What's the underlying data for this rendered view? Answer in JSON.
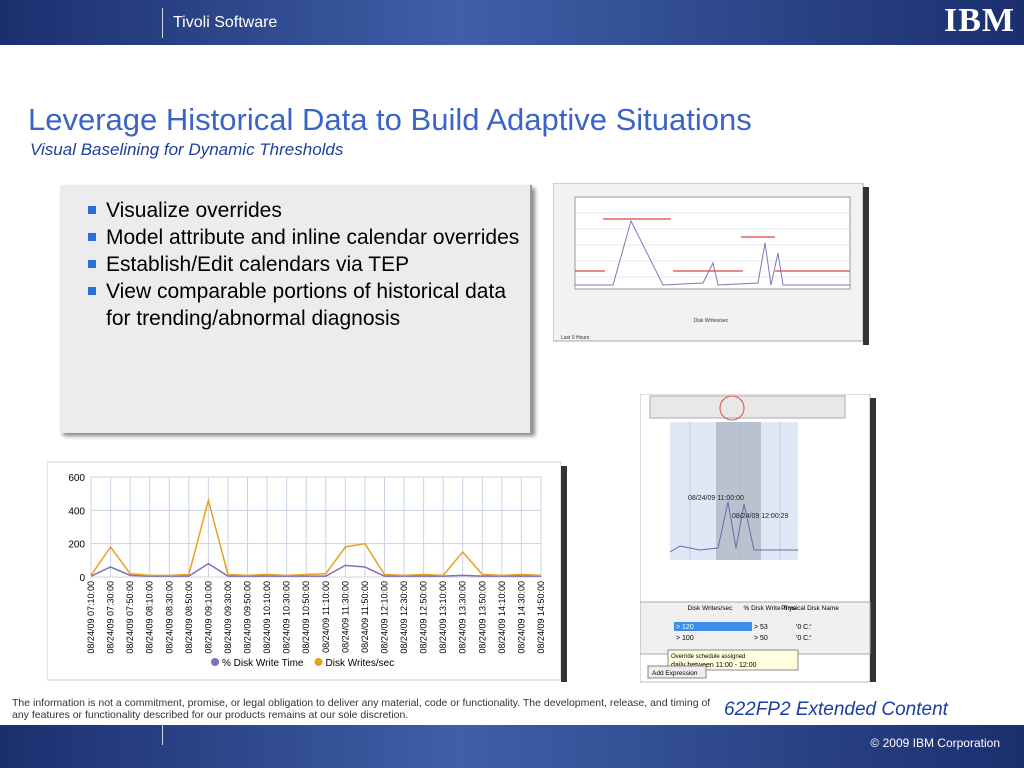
{
  "header": {
    "product": "Tivoli Software",
    "logo": "IBM"
  },
  "title": "Leverage Historical Data to Build Adaptive Situations",
  "subtitle": "Visual Baselining for Dynamic Thresholds",
  "bullets": [
    "Visualize overrides",
    "Model attribute and inline calendar overrides",
    "Establish/Edit calendars via TEP",
    "View comparable portions of historical data for trending/abnormal diagnosis"
  ],
  "top_screenshot": {
    "chart_title": "Disk Writes/sec",
    "footer": "Last 9 Hours"
  },
  "chart": {
    "type": "line",
    "categories": [
      "08/24/09 07:10:00",
      "08/24/09 07:30:00",
      "08/24/09 07:50:00",
      "08/24/09 08:10:00",
      "08/24/09 08:30:00",
      "08/24/09 08:50:00",
      "08/24/09 09:10:00",
      "08/24/09 09:30:00",
      "08/24/09 09:50:00",
      "08/24/09 10:10:00",
      "08/24/09 10:30:00",
      "08/24/09 10:50:00",
      "08/24/09 11:10:00",
      "08/24/09 11:30:00",
      "08/24/09 11:50:00",
      "08/24/09 12:10:00",
      "08/24/09 12:30:00",
      "08/24/09 12:50:00",
      "08/24/09 13:10:00",
      "08/24/09 13:30:00",
      "08/24/09 13:50:00",
      "08/24/09 14:10:00",
      "08/24/09 14:30:00",
      "08/24/09 14:50:00"
    ],
    "series": [
      {
        "name": "% Disk Write Time",
        "color": "#7f6fb8",
        "values": [
          5,
          60,
          10,
          5,
          5,
          5,
          80,
          5,
          5,
          5,
          5,
          5,
          5,
          70,
          60,
          5,
          5,
          5,
          5,
          10,
          5,
          5,
          5,
          5
        ]
      },
      {
        "name": "Disk Writes/sec",
        "color": "#e8a020",
        "values": [
          10,
          180,
          20,
          10,
          10,
          15,
          460,
          15,
          10,
          15,
          10,
          15,
          20,
          180,
          200,
          15,
          10,
          15,
          10,
          150,
          15,
          10,
          15,
          10
        ]
      }
    ],
    "ylim": [
      0,
      600
    ],
    "yticks": [
      0,
      200,
      400,
      600
    ],
    "grid": true
  },
  "bottom_screenshot": {
    "timestamps": [
      "08/24/09 11:00:00",
      "08/24/09 12:00:29"
    ],
    "table": {
      "header": [
        "Disk Writes/sec",
        "% Disk Write Time",
        "Physical Disk Name"
      ],
      "rows": [
        [
          "> 120",
          "> 53",
          "'0 C:'"
        ],
        [
          "> 100",
          "> 50",
          "'0 C:'"
        ]
      ]
    },
    "tooltip_title": "Override schedule assigned",
    "tooltip_text": "daily between 11:00 - 12:00",
    "button": "Add Expression"
  },
  "disclaimer": "The information is not a commitment, promise, or legal obligation to deliver any material, code or functionality.  The development, release, and timing of any features or functionality described for our products remains at our sole discretion.",
  "badge": "622FP2 Extended Content",
  "footer": "© 2009 IBM Corporation"
}
